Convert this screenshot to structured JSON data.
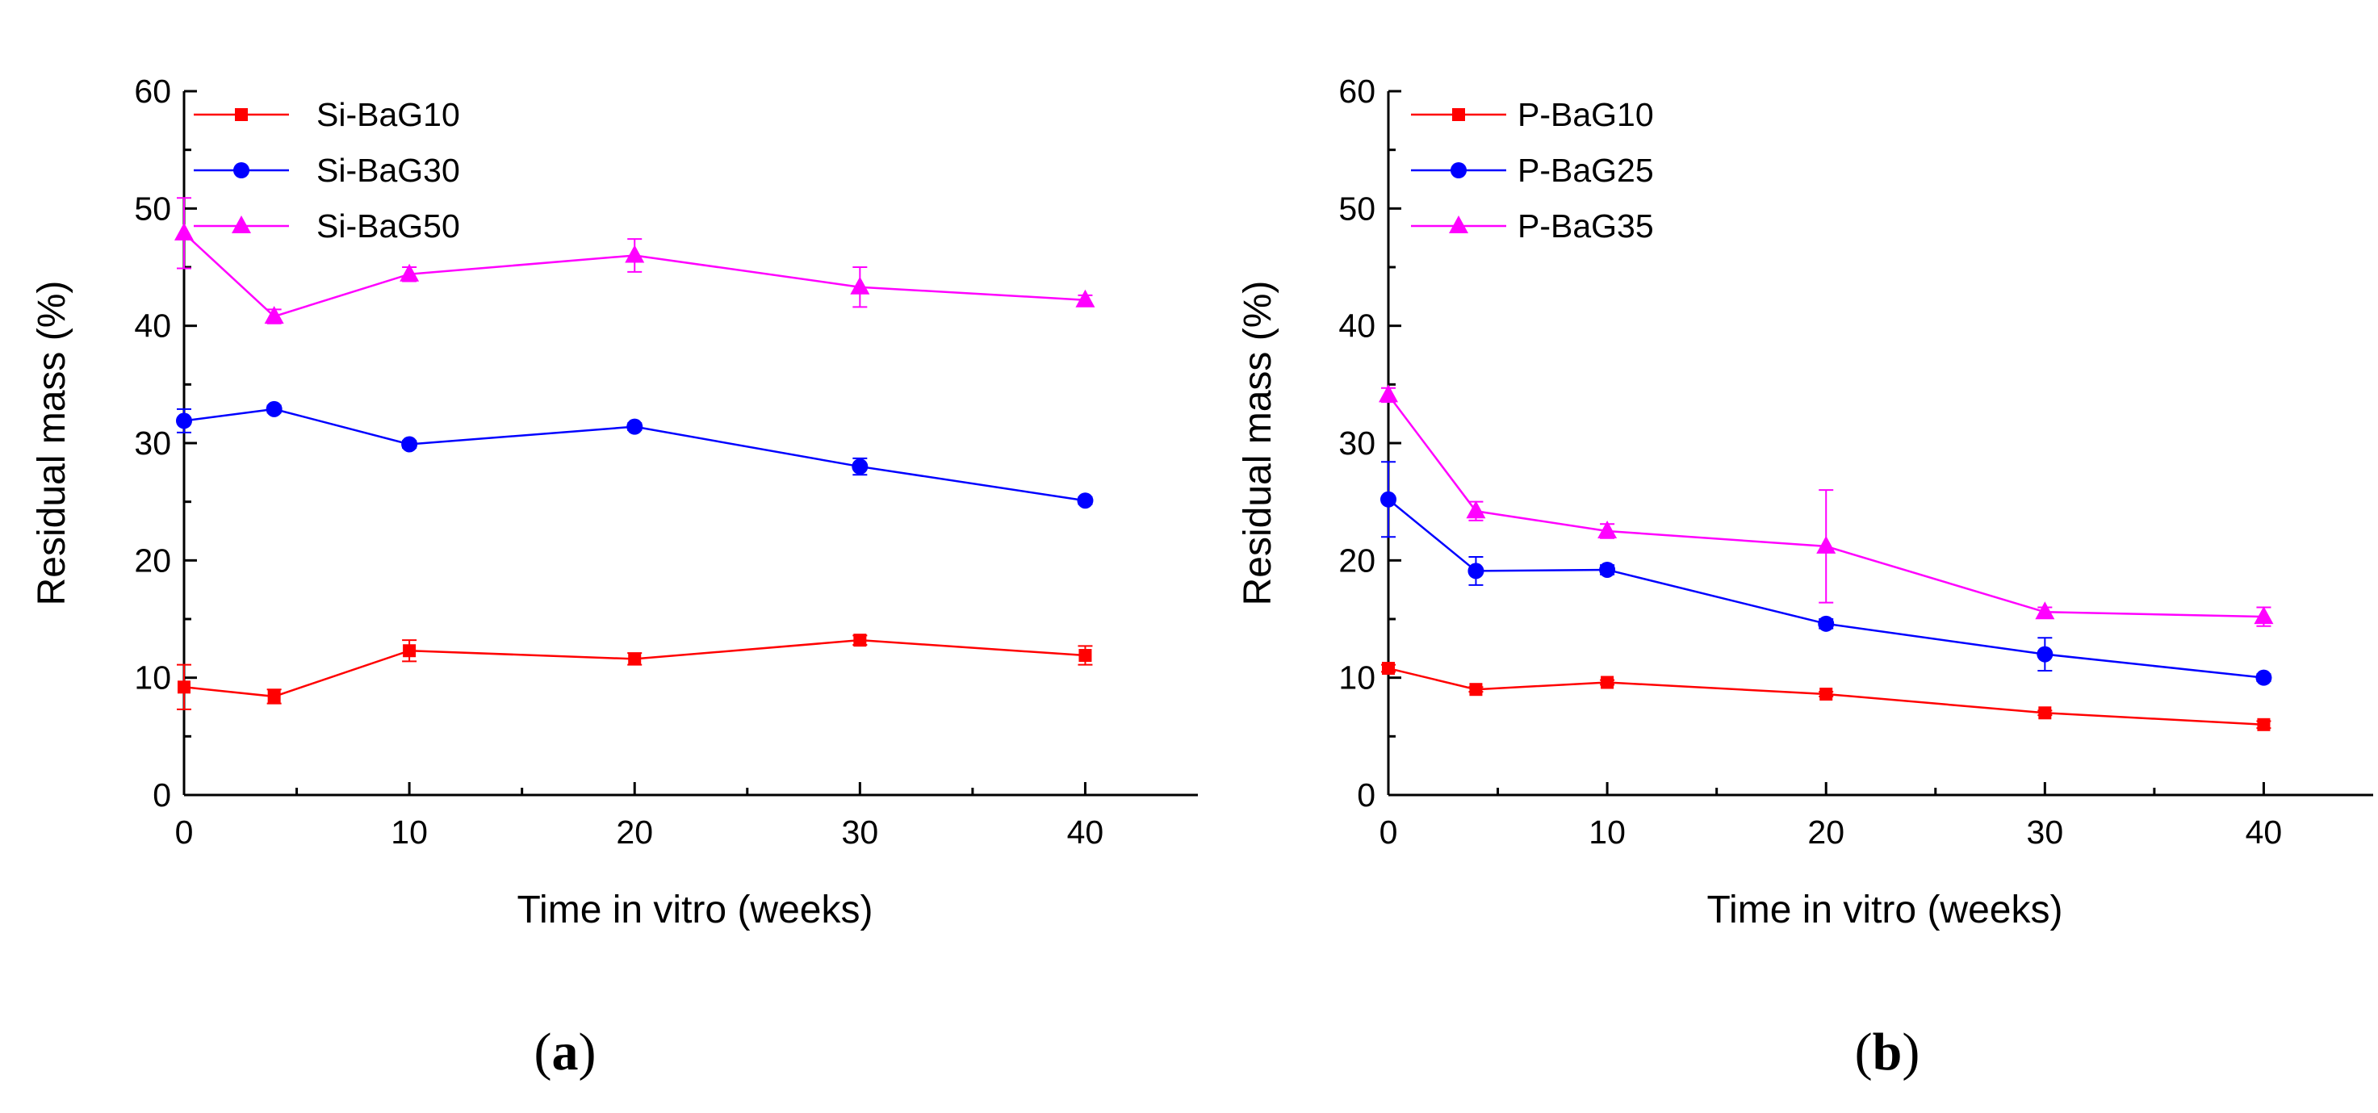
{
  "chart_data": [
    {
      "type": "line",
      "panel": "a",
      "caption": "(a)",
      "caption_letter": "a",
      "xlabel": "Time in vitro (weeks)",
      "ylabel": "Residual mass (%)",
      "xlim": [
        0,
        45
      ],
      "ylim": [
        0,
        60
      ],
      "x_ticks": [
        0,
        10,
        20,
        30,
        40
      ],
      "y_ticks": [
        0,
        10,
        20,
        30,
        40,
        50,
        60
      ],
      "legend_position": "top-left",
      "series": [
        {
          "name": "Si-BaG10",
          "color": "#ff0000",
          "marker": "square",
          "x": [
            0,
            4,
            10,
            20,
            30,
            40
          ],
          "y": [
            9.2,
            8.4,
            12.3,
            11.6,
            13.2,
            11.9
          ],
          "err": [
            1.9,
            0.6,
            0.9,
            0.5,
            0.4,
            0.8
          ]
        },
        {
          "name": "Si-BaG30",
          "color": "#0000ff",
          "marker": "circle",
          "x": [
            0,
            4,
            10,
            20,
            30,
            40
          ],
          "y": [
            31.9,
            32.9,
            29.9,
            31.4,
            28.0,
            25.1
          ],
          "err": [
            1.0,
            0.3,
            0.3,
            0.3,
            0.7,
            0.3
          ]
        },
        {
          "name": "Si-BaG50",
          "color": "#ff00ff",
          "marker": "triangle",
          "x": [
            0,
            4,
            10,
            20,
            30,
            40
          ],
          "y": [
            47.9,
            40.8,
            44.4,
            46.0,
            43.3,
            42.2
          ],
          "err": [
            3.0,
            0.6,
            0.6,
            1.4,
            1.7,
            0.4
          ]
        }
      ]
    },
    {
      "type": "line",
      "panel": "b",
      "caption": "(b)",
      "caption_letter": "b",
      "xlabel": "Time in vitro (weeks)",
      "ylabel": "Residual mass (%)",
      "xlim": [
        0,
        45
      ],
      "ylim": [
        0,
        60
      ],
      "x_ticks": [
        0,
        10,
        20,
        30,
        40
      ],
      "y_ticks": [
        0,
        10,
        20,
        30,
        40,
        50,
        60
      ],
      "legend_position": "top-left",
      "series": [
        {
          "name": "P-BaG10",
          "color": "#ff0000",
          "marker": "square",
          "x": [
            0,
            4,
            10,
            20,
            30,
            40
          ],
          "y": [
            10.8,
            9.0,
            9.6,
            8.6,
            7.0,
            6.0
          ],
          "err": [
            0.3,
            0.2,
            0.2,
            0.2,
            0.2,
            0.3
          ]
        },
        {
          "name": "P-BaG25",
          "color": "#0000ff",
          "marker": "circle",
          "x": [
            0,
            4,
            10,
            20,
            30,
            40
          ],
          "y": [
            25.2,
            19.1,
            19.2,
            14.6,
            12.0,
            10.0
          ],
          "err": [
            3.2,
            1.2,
            0.4,
            0.4,
            1.4,
            0.3
          ]
        },
        {
          "name": "P-BaG35",
          "color": "#ff00ff",
          "marker": "triangle",
          "x": [
            0,
            4,
            10,
            20,
            30,
            40
          ],
          "y": [
            34.1,
            24.2,
            22.5,
            21.2,
            15.6,
            15.2
          ],
          "err": [
            0.6,
            0.8,
            0.6,
            4.8,
            0.4,
            0.8
          ]
        }
      ]
    }
  ]
}
